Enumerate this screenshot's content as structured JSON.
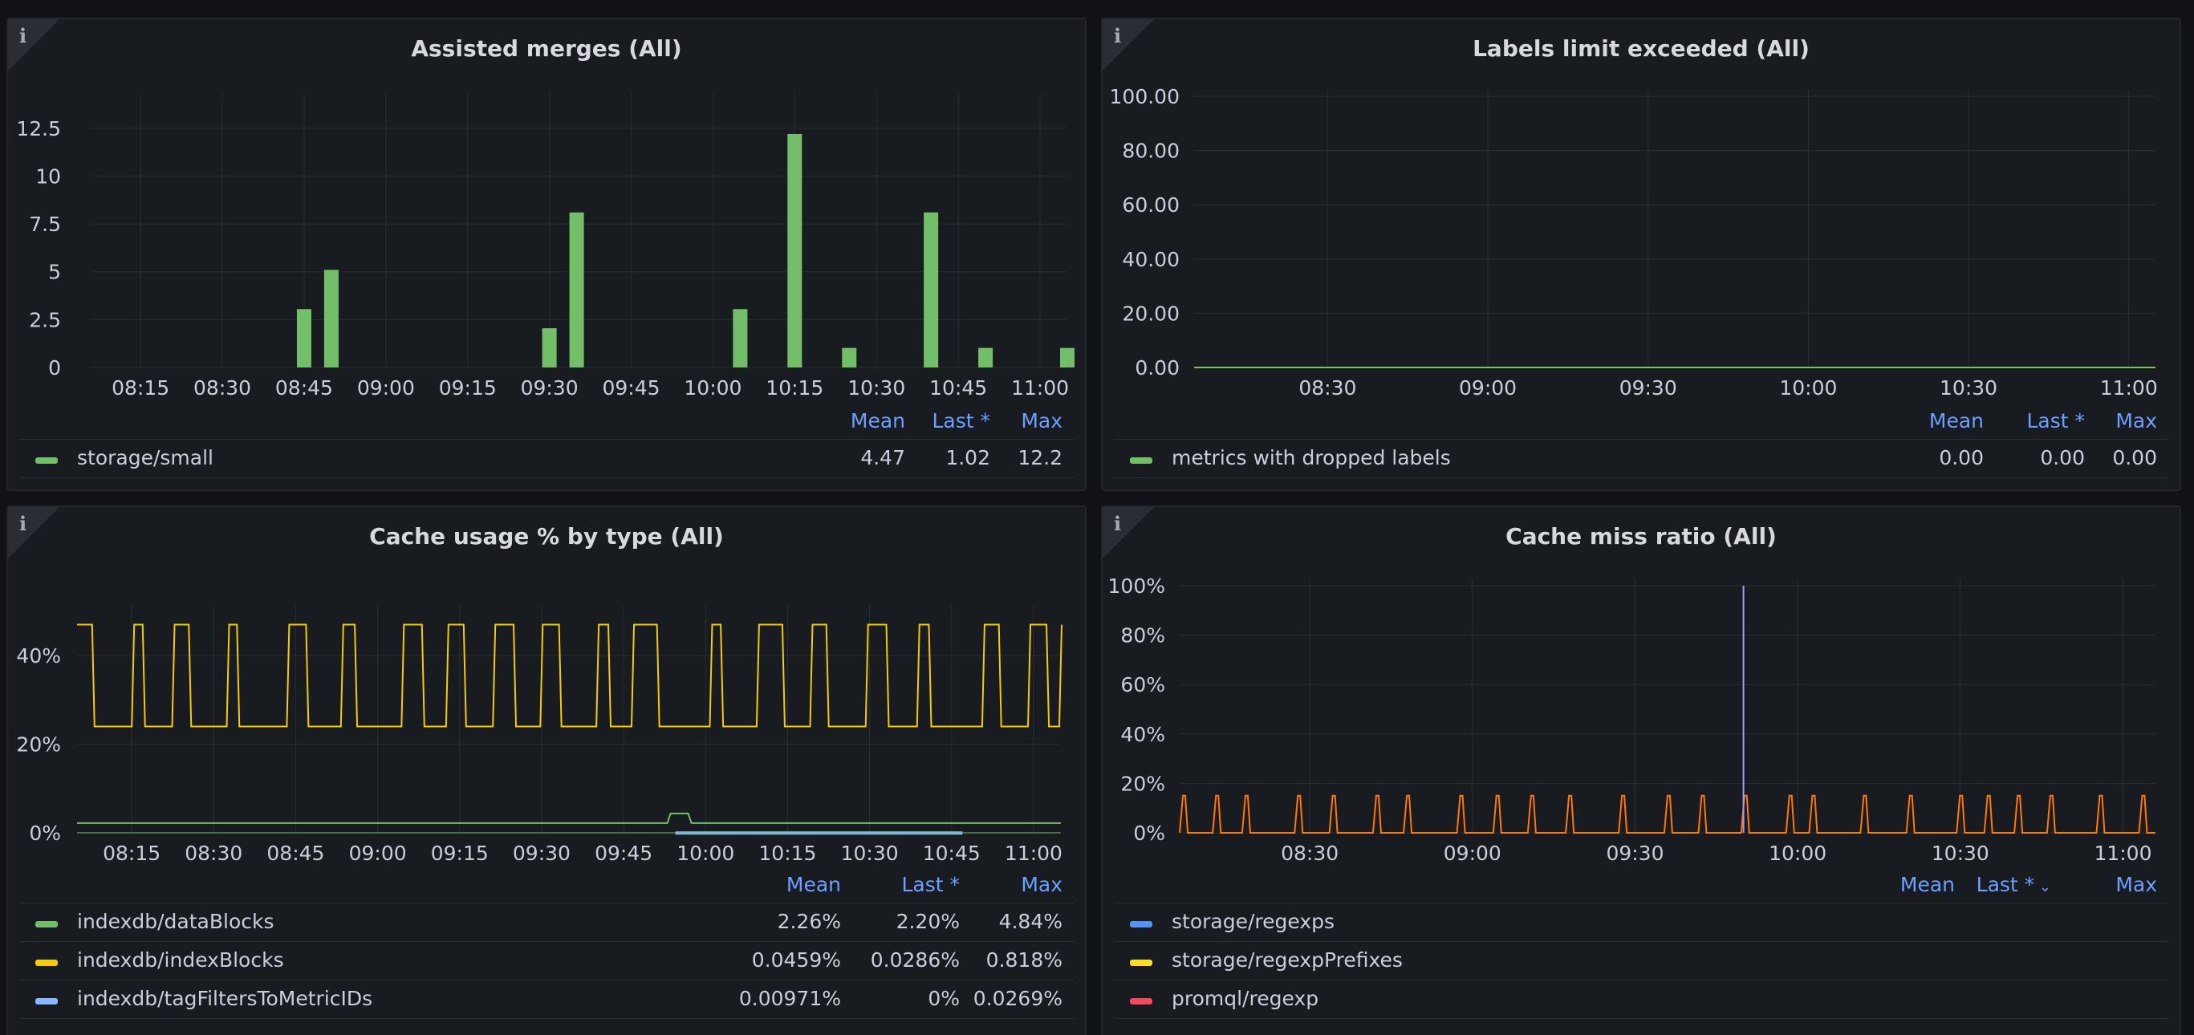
{
  "colors": {
    "green": "#73bf69",
    "yellow": "#f2cc0c",
    "blue": "#8ab8ff",
    "orange": "#ff780a",
    "purple": "#a09aff",
    "red": "#f2495c",
    "grid": "#2a2d33",
    "legendHeader": "#6e9fff"
  },
  "panels": {
    "assisted_merges": {
      "title": "Assisted merges (All)",
      "legend_headers": [
        "Mean",
        "Last *",
        "Max"
      ],
      "series": [
        {
          "name": "storage/small",
          "color": "#73bf69",
          "mean": "4.47",
          "last": "1.02",
          "max": "12.2"
        }
      ],
      "chart_data": {
        "type": "bar",
        "x_ticks": [
          "08:15",
          "08:30",
          "08:45",
          "09:00",
          "09:15",
          "09:30",
          "09:45",
          "10:00",
          "10:15",
          "10:30",
          "10:45",
          "11:00"
        ],
        "y_ticks": [
          "0",
          "2.5",
          "5",
          "7.5",
          "10",
          "12.5"
        ],
        "ylim": [
          0,
          14
        ],
        "grid": true,
        "bars": [
          {
            "t": "08:45",
            "v": 3.05
          },
          {
            "t": "08:50",
            "v": 5.1
          },
          {
            "t": "09:30",
            "v": 2.05
          },
          {
            "t": "09:35",
            "v": 8.1
          },
          {
            "t": "10:05",
            "v": 3.05
          },
          {
            "t": "10:15",
            "v": 12.2
          },
          {
            "t": "10:25",
            "v": 1.02
          },
          {
            "t": "10:40",
            "v": 8.1
          },
          {
            "t": "10:50",
            "v": 1.02
          },
          {
            "t": "11:05",
            "v": 1.02
          }
        ]
      }
    },
    "labels_limit": {
      "title": "Labels limit exceeded (All)",
      "legend_headers": [
        "Mean",
        "Last *",
        "Max"
      ],
      "series": [
        {
          "name": "metrics with dropped labels",
          "color": "#73bf69",
          "mean": "0.00",
          "last": "0.00",
          "max": "0.00"
        }
      ],
      "chart_data": {
        "type": "line",
        "x_ticks": [
          "08:30",
          "09:00",
          "09:30",
          "10:00",
          "10:30",
          "11:00"
        ],
        "y_ticks": [
          "0.00",
          "20.00",
          "40.00",
          "60.00",
          "80.00",
          "100.00"
        ],
        "ylim": [
          0,
          100
        ],
        "grid": true,
        "value": 0
      }
    },
    "cache_usage": {
      "title": "Cache usage % by type (All)",
      "legend_headers": [
        "Mean",
        "Last *",
        "Max"
      ],
      "series": [
        {
          "name": "indexdb/dataBlocks",
          "color": "#73bf69",
          "mean": "2.26%",
          "last": "2.20%",
          "max": "4.84%"
        },
        {
          "name": "indexdb/indexBlocks",
          "color": "#f2cc0c",
          "mean": "0.0459%",
          "last": "0.0286%",
          "max": "0.818%"
        },
        {
          "name": "indexdb/tagFiltersToMetricIDs",
          "color": "#8ab8ff",
          "mean": "0.00971%",
          "last": "0%",
          "max": "0.0269%"
        }
      ],
      "chart_data": {
        "type": "line",
        "x_ticks": [
          "08:15",
          "08:30",
          "08:45",
          "09:00",
          "09:15",
          "09:30",
          "09:45",
          "10:00",
          "10:15",
          "10:30",
          "10:45",
          "11:00"
        ],
        "y_ticks": [
          "0%",
          "20%",
          "40%"
        ],
        "ylim": [
          0,
          50
        ],
        "grid": true,
        "square_wave": {
          "low": 24,
          "high": 47
        },
        "flat": [
          {
            "series": "green",
            "level": 2.2
          },
          {
            "series": "blue",
            "level": 0.5
          }
        ]
      }
    },
    "cache_miss": {
      "title": "Cache miss ratio (All)",
      "legend_headers": [
        "Mean",
        "Last *",
        "Max"
      ],
      "legend_sort_icon": "chevron-down-icon",
      "series": [
        {
          "name": "storage/regexps",
          "color": "#5794f2"
        },
        {
          "name": "storage/regexpPrefixes",
          "color": "#fade2a"
        },
        {
          "name": "promql/regexp",
          "color": "#f2495c"
        }
      ],
      "chart_data": {
        "type": "line",
        "x_ticks": [
          "08:30",
          "09:00",
          "09:30",
          "10:00",
          "10:30",
          "11:00"
        ],
        "y_ticks": [
          "0%",
          "20%",
          "40%",
          "60%",
          "80%",
          "100%"
        ],
        "ylim": [
          0,
          100
        ],
        "grid": true,
        "spike": {
          "t": "09:50",
          "v": 100
        },
        "pulse_height": 15
      }
    }
  }
}
